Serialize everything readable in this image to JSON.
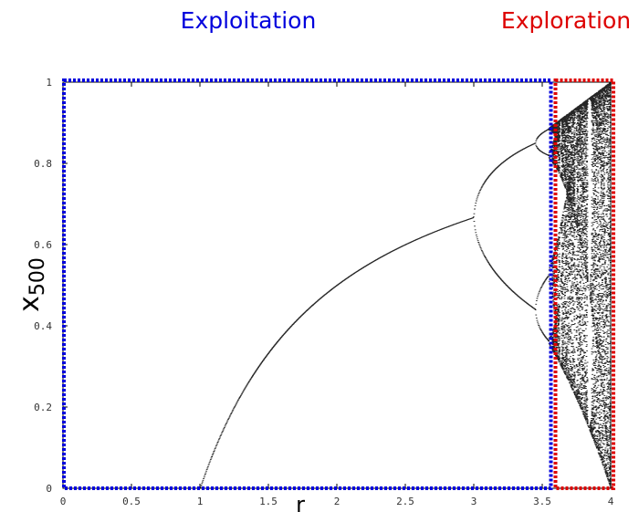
{
  "chart_data": {
    "type": "scatter",
    "title": "",
    "xlabel": "r",
    "ylabel_base": "x",
    "ylabel_subscript": "500",
    "xlim": [
      0,
      4
    ],
    "ylim": [
      0,
      1
    ],
    "x_ticks": [
      0,
      0.5,
      1,
      1.5,
      2,
      2.5,
      3,
      3.5,
      4
    ],
    "x_tick_labels": [
      "0",
      "0.5",
      "1",
      "1.5",
      "2",
      "2.5",
      "3",
      "3.5",
      "4"
    ],
    "y_ticks": [
      0,
      0.2,
      0.4,
      0.6,
      0.8,
      1
    ],
    "y_tick_labels": [
      "0",
      "0.2",
      "0.4",
      "0.6",
      "0.8",
      "1"
    ],
    "grid": false,
    "series": [
      {
        "description_source": "logistic map bifurcation diagram",
        "formula": "x_{n+1} = r * x_n * (1 - x_n)",
        "r_range": [
          0,
          4
        ],
        "x0": 0.5,
        "iterations_shown": 500,
        "color": "#000000"
      }
    ],
    "annotations": [
      {
        "label": "Exploitation",
        "color": "#0000dd",
        "x_range": [
          0,
          3.57
        ],
        "y_range": [
          0,
          1
        ]
      },
      {
        "label": "Exploration",
        "color": "#dd0000",
        "x_range": [
          3.57,
          4
        ],
        "y_range": [
          0,
          1
        ]
      }
    ]
  }
}
